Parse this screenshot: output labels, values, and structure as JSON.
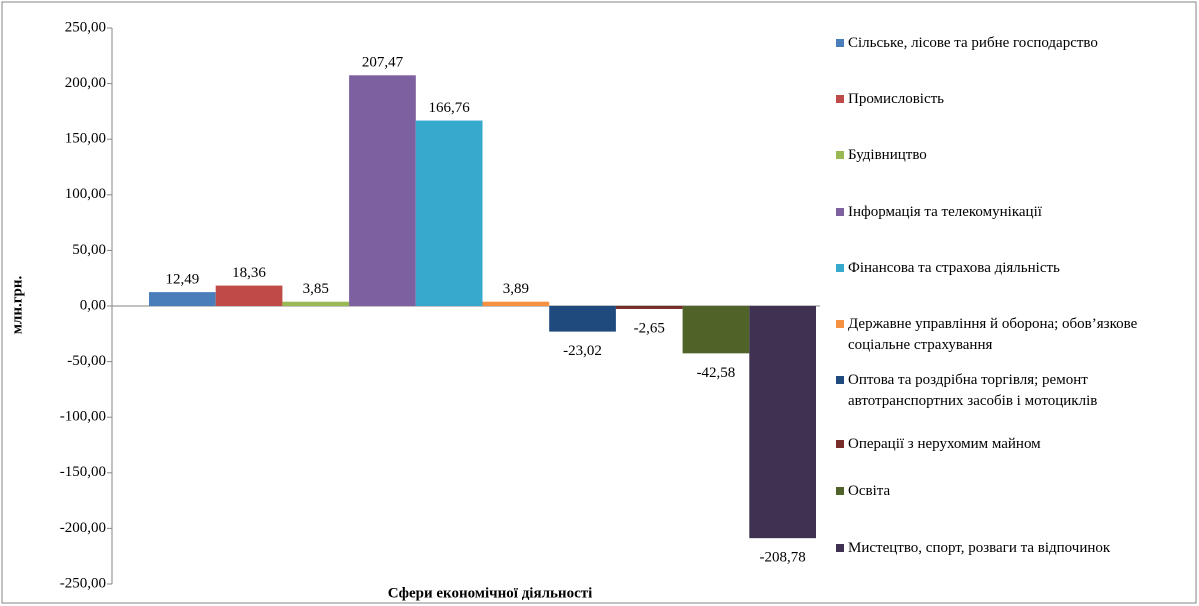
{
  "chart_data": {
    "type": "bar",
    "ylabel": "млн.грн.",
    "xlabel": "Сфери економічної діяльності",
    "categories": [
      ""
    ],
    "ylim": [
      -250,
      250
    ],
    "yticks": [
      {
        "value": 250,
        "label": "250,00"
      },
      {
        "value": 200,
        "label": "200,00"
      },
      {
        "value": 150,
        "label": "150,00"
      },
      {
        "value": 100,
        "label": "100,00"
      },
      {
        "value": 50,
        "label": "50,00"
      },
      {
        "value": 0,
        "label": "0,00"
      },
      {
        "value": -50,
        "label": "-50,00"
      },
      {
        "value": -100,
        "label": "-100,00"
      },
      {
        "value": -150,
        "label": "-150,00"
      },
      {
        "value": -200,
        "label": "-200,00"
      },
      {
        "value": -250,
        "label": "-250,00"
      }
    ],
    "grid": false,
    "legend": "right",
    "series": [
      {
        "name": "Сільське, лісове та рибне господарство",
        "color": "#4a7ebb",
        "values": [
          12.49
        ],
        "value_labels": [
          "12,49"
        ]
      },
      {
        "name": "Промисловість",
        "color": "#be4b48",
        "values": [
          18.36
        ],
        "value_labels": [
          "18,36"
        ]
      },
      {
        "name": "Будівництво",
        "color": "#98b954",
        "values": [
          3.85
        ],
        "value_labels": [
          "3,85"
        ]
      },
      {
        "name": "Інформація та телекомунікації",
        "color": "#7d60a0",
        "values": [
          207.47
        ],
        "value_labels": [
          "207,47"
        ]
      },
      {
        "name": "Фінансова та страхова діяльність",
        "color": "#36a9cc",
        "values": [
          166.76
        ],
        "value_labels": [
          "166,76"
        ]
      },
      {
        "name": "Державне управління й оборона; обов’язкове соціальне страхування",
        "color": "#f59140",
        "values": [
          3.89
        ],
        "value_labels": [
          "3,89"
        ]
      },
      {
        "name": "Оптова та роздрібна торгівля; ремонт автотранспортних засобів і мотоциклів",
        "color": "#1f4a7e",
        "values": [
          -23.02
        ],
        "value_labels": [
          "-23,02"
        ]
      },
      {
        "name": "Операції з нерухомим майном",
        "color": "#772c2a",
        "values": [
          -2.65
        ],
        "value_labels": [
          "-2,65"
        ]
      },
      {
        "name": "Освіта",
        "color": "#4f6228",
        "values": [
          -42.58
        ],
        "value_labels": [
          "-42,58"
        ]
      },
      {
        "name": "Мистецтво, спорт, розваги та відпочинок",
        "color": "#3f3151",
        "values": [
          -208.78
        ],
        "value_labels": [
          "-208,78"
        ]
      }
    ]
  }
}
